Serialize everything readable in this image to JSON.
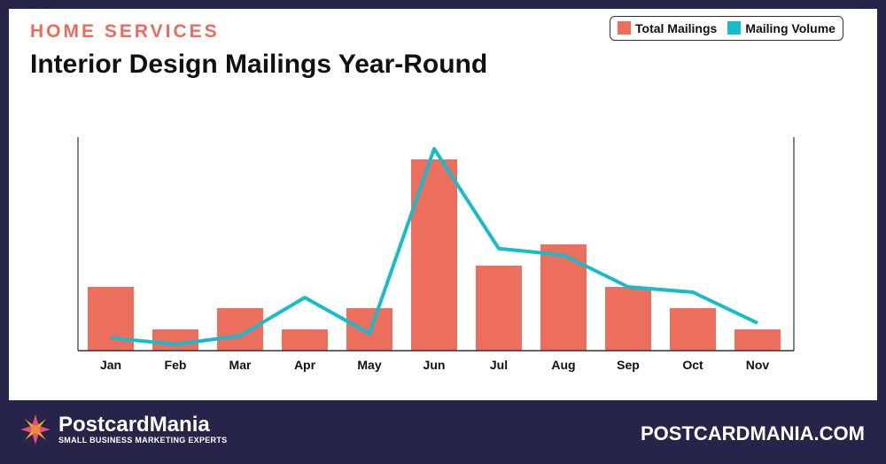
{
  "header": {
    "kicker": "HOME SERVICES",
    "title": "Interior Design Mailings Year-Round"
  },
  "legend": [
    {
      "label": "Total Mailings",
      "color": "#ec6f5e"
    },
    {
      "label": "Mailing Volume",
      "color": "#17bccb"
    }
  ],
  "footer": {
    "brand": "PostcardMania",
    "tagline": "SMALL BUSINESS MARKETING EXPERTS",
    "url": "POSTCARDMANIA.COM"
  },
  "chart_data": {
    "type": "bar",
    "title": "Interior Design Mailings Year-Round",
    "categories": [
      "Jan",
      "Feb",
      "Mar",
      "Apr",
      "May",
      "Jun",
      "Jul",
      "Aug",
      "Sep",
      "Oct",
      "Nov"
    ],
    "series": [
      {
        "name": "Total Mailings",
        "type": "bar",
        "color": "#ec6f5e",
        "values": [
          3,
          1,
          2,
          1,
          2,
          9,
          4,
          5,
          3,
          2,
          1
        ]
      },
      {
        "name": "Mailing Volume",
        "type": "line",
        "color": "#17bccb",
        "values": [
          0.6,
          0.3,
          0.7,
          2.5,
          0.8,
          9.5,
          4.8,
          4.5,
          3.0,
          2.75,
          1.3
        ]
      }
    ],
    "ylim": [
      0,
      10
    ],
    "y_axis_labels": false,
    "grid": false,
    "legend_position": "top-right"
  }
}
